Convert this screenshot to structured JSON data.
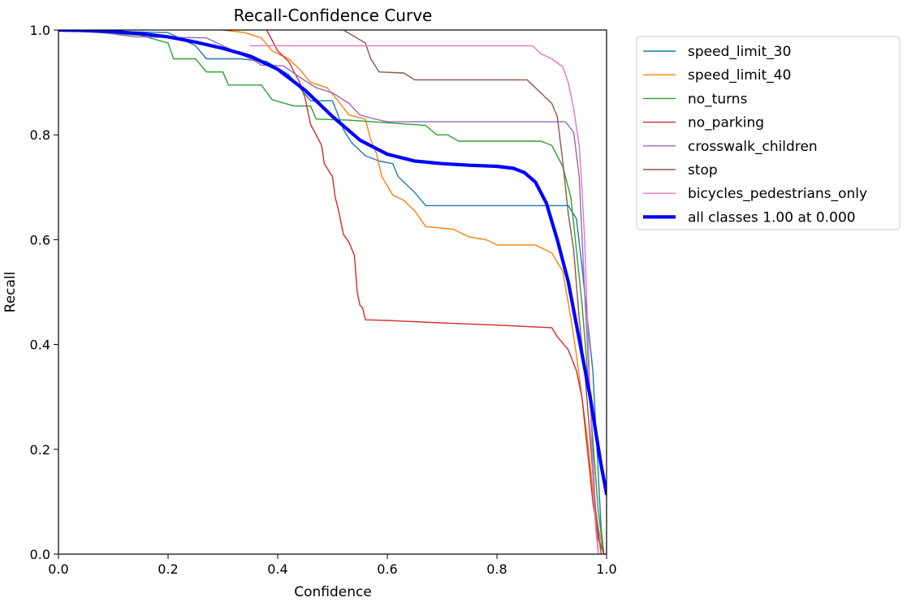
{
  "chart_data": {
    "type": "line",
    "title": "Recall-Confidence Curve",
    "xlabel": "Confidence",
    "ylabel": "Recall",
    "xlim": [
      0.0,
      1.0
    ],
    "ylim": [
      0.0,
      1.0
    ],
    "xticks": [
      0.0,
      0.2,
      0.4,
      0.6,
      0.8,
      1.0
    ],
    "yticks": [
      0.0,
      0.2,
      0.4,
      0.6,
      0.8,
      1.0
    ],
    "xtick_labels": [
      "0.0",
      "0.2",
      "0.4",
      "0.6",
      "0.8",
      "1.0"
    ],
    "ytick_labels": [
      "0.0",
      "0.2",
      "0.4",
      "0.6",
      "0.8",
      "1.0"
    ],
    "grid": false,
    "legend_position": "outside-right-top",
    "series": [
      {
        "name": "speed_limit_30",
        "color": "#1f77b4",
        "width": 1.4,
        "points": [
          [
            0,
            1.0
          ],
          [
            0.2,
            0.995
          ],
          [
            0.25,
            0.97
          ],
          [
            0.27,
            0.945
          ],
          [
            0.33,
            0.945
          ],
          [
            0.35,
            0.943
          ],
          [
            0.38,
            0.94
          ],
          [
            0.42,
            0.915
          ],
          [
            0.44,
            0.89
          ],
          [
            0.46,
            0.865
          ],
          [
            0.5,
            0.865
          ],
          [
            0.51,
            0.838
          ],
          [
            0.52,
            0.81
          ],
          [
            0.535,
            0.785
          ],
          [
            0.55,
            0.77
          ],
          [
            0.56,
            0.76
          ],
          [
            0.585,
            0.75
          ],
          [
            0.61,
            0.745
          ],
          [
            0.62,
            0.72
          ],
          [
            0.65,
            0.69
          ],
          [
            0.67,
            0.665
          ],
          [
            0.8,
            0.665
          ],
          [
            0.93,
            0.665
          ],
          [
            0.945,
            0.64
          ],
          [
            0.955,
            0.55
          ],
          [
            0.965,
            0.45
          ],
          [
            0.975,
            0.35
          ],
          [
            0.985,
            0.15
          ],
          [
            0.99,
            0.05
          ],
          [
            0.995,
            0.0
          ]
        ]
      },
      {
        "name": "speed_limit_40",
        "color": "#ff7f0e",
        "width": 1.4,
        "points": [
          [
            0.3,
            1.0
          ],
          [
            0.34,
            0.995
          ],
          [
            0.37,
            0.985
          ],
          [
            0.39,
            0.96
          ],
          [
            0.42,
            0.945
          ],
          [
            0.44,
            0.925
          ],
          [
            0.46,
            0.9
          ],
          [
            0.49,
            0.89
          ],
          [
            0.51,
            0.865
          ],
          [
            0.53,
            0.838
          ],
          [
            0.56,
            0.83
          ],
          [
            0.57,
            0.79
          ],
          [
            0.58,
            0.765
          ],
          [
            0.59,
            0.72
          ],
          [
            0.61,
            0.685
          ],
          [
            0.63,
            0.675
          ],
          [
            0.65,
            0.655
          ],
          [
            0.67,
            0.625
          ],
          [
            0.72,
            0.62
          ],
          [
            0.75,
            0.605
          ],
          [
            0.78,
            0.6
          ],
          [
            0.8,
            0.59
          ],
          [
            0.87,
            0.59
          ],
          [
            0.9,
            0.575
          ],
          [
            0.92,
            0.54
          ],
          [
            0.935,
            0.45
          ],
          [
            0.945,
            0.38
          ],
          [
            0.955,
            0.3
          ],
          [
            0.965,
            0.22
          ],
          [
            0.975,
            0.12
          ],
          [
            0.985,
            0.05
          ],
          [
            0.995,
            0.0
          ]
        ]
      },
      {
        "name": "no_turns",
        "color": "#2ca02c",
        "width": 1.4,
        "points": [
          [
            0,
            1.0
          ],
          [
            0.15,
            0.99
          ],
          [
            0.2,
            0.975
          ],
          [
            0.21,
            0.945
          ],
          [
            0.25,
            0.945
          ],
          [
            0.27,
            0.92
          ],
          [
            0.3,
            0.92
          ],
          [
            0.31,
            0.895
          ],
          [
            0.37,
            0.895
          ],
          [
            0.39,
            0.867
          ],
          [
            0.43,
            0.855
          ],
          [
            0.46,
            0.855
          ],
          [
            0.47,
            0.83
          ],
          [
            0.53,
            0.828
          ],
          [
            0.6,
            0.823
          ],
          [
            0.67,
            0.818
          ],
          [
            0.69,
            0.8
          ],
          [
            0.71,
            0.8
          ],
          [
            0.73,
            0.788
          ],
          [
            0.8,
            0.788
          ],
          [
            0.88,
            0.788
          ],
          [
            0.9,
            0.78
          ],
          [
            0.92,
            0.74
          ],
          [
            0.935,
            0.68
          ],
          [
            0.945,
            0.58
          ],
          [
            0.955,
            0.48
          ],
          [
            0.965,
            0.35
          ],
          [
            0.975,
            0.22
          ],
          [
            0.985,
            0.08
          ],
          [
            0.995,
            0.0
          ]
        ]
      },
      {
        "name": "no_parking",
        "color": "#d62728",
        "width": 1.4,
        "points": [
          [
            0.38,
            1.0
          ],
          [
            0.4,
            0.96
          ],
          [
            0.42,
            0.94
          ],
          [
            0.44,
            0.9
          ],
          [
            0.45,
            0.87
          ],
          [
            0.46,
            0.82
          ],
          [
            0.47,
            0.8
          ],
          [
            0.48,
            0.78
          ],
          [
            0.485,
            0.745
          ],
          [
            0.5,
            0.72
          ],
          [
            0.505,
            0.68
          ],
          [
            0.51,
            0.66
          ],
          [
            0.52,
            0.61
          ],
          [
            0.53,
            0.595
          ],
          [
            0.54,
            0.57
          ],
          [
            0.545,
            0.5
          ],
          [
            0.55,
            0.475
          ],
          [
            0.555,
            0.47
          ],
          [
            0.56,
            0.447
          ],
          [
            0.6,
            0.446
          ],
          [
            0.7,
            0.441
          ],
          [
            0.8,
            0.437
          ],
          [
            0.9,
            0.432
          ],
          [
            0.91,
            0.415
          ],
          [
            0.93,
            0.39
          ],
          [
            0.945,
            0.35
          ],
          [
            0.955,
            0.3
          ],
          [
            0.965,
            0.2
          ],
          [
            0.975,
            0.1
          ],
          [
            0.985,
            0.03
          ],
          [
            0.995,
            0.0
          ]
        ]
      },
      {
        "name": "crosswalk_children",
        "color": "#9467bd",
        "width": 1.4,
        "points": [
          [
            0,
            1.0
          ],
          [
            0.08,
            0.995
          ],
          [
            0.14,
            0.987
          ],
          [
            0.27,
            0.985
          ],
          [
            0.32,
            0.96
          ],
          [
            0.36,
            0.94
          ],
          [
            0.37,
            0.933
          ],
          [
            0.41,
            0.932
          ],
          [
            0.44,
            0.91
          ],
          [
            0.47,
            0.89
          ],
          [
            0.5,
            0.88
          ],
          [
            0.53,
            0.86
          ],
          [
            0.55,
            0.838
          ],
          [
            0.57,
            0.832
          ],
          [
            0.6,
            0.825
          ],
          [
            0.7,
            0.825
          ],
          [
            0.8,
            0.825
          ],
          [
            0.9,
            0.825
          ],
          [
            0.925,
            0.825
          ],
          [
            0.94,
            0.805
          ],
          [
            0.95,
            0.72
          ],
          [
            0.96,
            0.5
          ],
          [
            0.97,
            0.3
          ],
          [
            0.978,
            0.12
          ],
          [
            0.985,
            0.0
          ]
        ]
      },
      {
        "name": "stop",
        "color": "#8c564b",
        "width": 1.4,
        "points": [
          [
            0.52,
            1.0
          ],
          [
            0.56,
            0.975
          ],
          [
            0.57,
            0.945
          ],
          [
            0.585,
            0.92
          ],
          [
            0.63,
            0.918
          ],
          [
            0.65,
            0.905
          ],
          [
            0.7,
            0.905
          ],
          [
            0.8,
            0.905
          ],
          [
            0.855,
            0.905
          ],
          [
            0.88,
            0.88
          ],
          [
            0.9,
            0.86
          ],
          [
            0.91,
            0.835
          ],
          [
            0.92,
            0.75
          ],
          [
            0.93,
            0.65
          ],
          [
            0.94,
            0.58
          ],
          [
            0.95,
            0.45
          ],
          [
            0.96,
            0.35
          ],
          [
            0.97,
            0.22
          ],
          [
            0.98,
            0.08
          ],
          [
            0.99,
            0.0
          ]
        ]
      },
      {
        "name": "bicycles_pedestrians_only",
        "color": "#e377c2",
        "width": 1.4,
        "points": [
          [
            0.35,
            0.97
          ],
          [
            0.45,
            0.97
          ],
          [
            0.5,
            0.97
          ],
          [
            0.6,
            0.97
          ],
          [
            0.7,
            0.97
          ],
          [
            0.8,
            0.97
          ],
          [
            0.865,
            0.97
          ],
          [
            0.88,
            0.955
          ],
          [
            0.9,
            0.945
          ],
          [
            0.92,
            0.93
          ],
          [
            0.93,
            0.9
          ],
          [
            0.94,
            0.85
          ],
          [
            0.95,
            0.78
          ],
          [
            0.955,
            0.7
          ],
          [
            0.96,
            0.6
          ],
          [
            0.965,
            0.45
          ],
          [
            0.97,
            0.3
          ],
          [
            0.975,
            0.15
          ],
          [
            0.98,
            0.05
          ],
          [
            0.985,
            0.0
          ]
        ]
      },
      {
        "name": "all classes 1.00 at 0.000",
        "color": "#0000ff",
        "width": 4.2,
        "points": [
          [
            0,
            1.0
          ],
          [
            0.05,
            0.999
          ],
          [
            0.1,
            0.997
          ],
          [
            0.15,
            0.993
          ],
          [
            0.2,
            0.987
          ],
          [
            0.25,
            0.977
          ],
          [
            0.3,
            0.965
          ],
          [
            0.35,
            0.95
          ],
          [
            0.4,
            0.925
          ],
          [
            0.45,
            0.885
          ],
          [
            0.5,
            0.835
          ],
          [
            0.55,
            0.79
          ],
          [
            0.6,
            0.763
          ],
          [
            0.65,
            0.75
          ],
          [
            0.7,
            0.745
          ],
          [
            0.75,
            0.742
          ],
          [
            0.8,
            0.74
          ],
          [
            0.83,
            0.736
          ],
          [
            0.85,
            0.728
          ],
          [
            0.87,
            0.71
          ],
          [
            0.89,
            0.67
          ],
          [
            0.91,
            0.6
          ],
          [
            0.93,
            0.52
          ],
          [
            0.95,
            0.41
          ],
          [
            0.97,
            0.3
          ],
          [
            0.98,
            0.235
          ],
          [
            0.99,
            0.17
          ],
          [
            1.0,
            0.115
          ]
        ]
      }
    ]
  }
}
